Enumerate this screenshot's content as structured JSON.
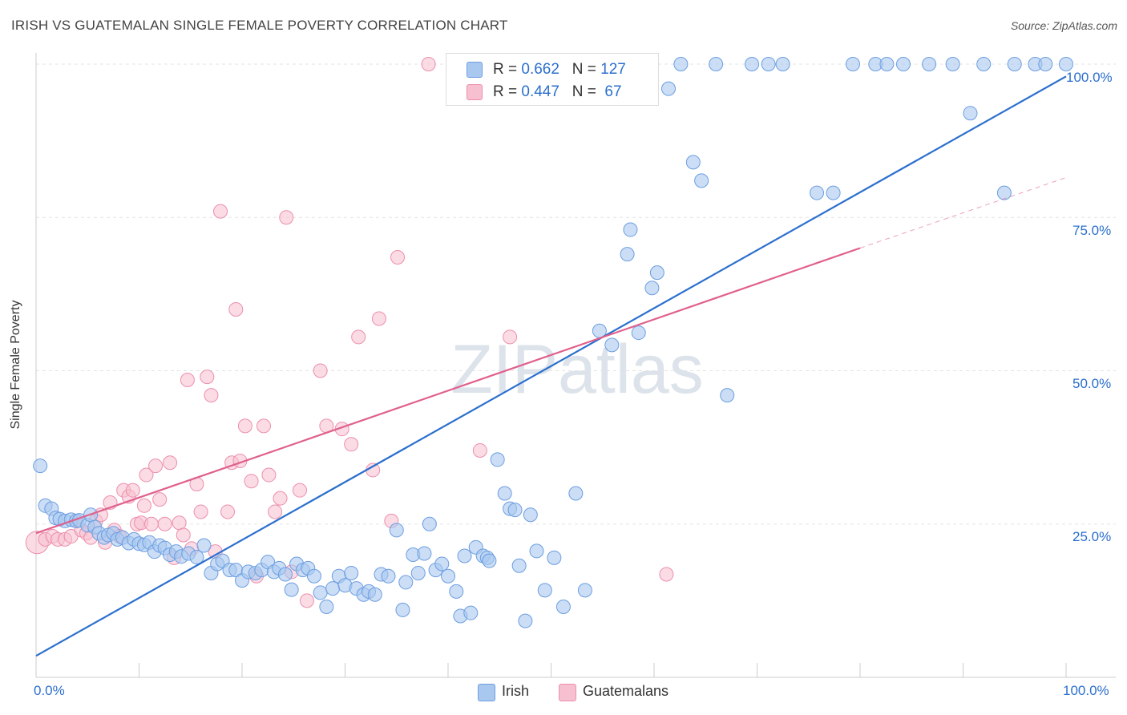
{
  "title": "IRISH VS GUATEMALAN SINGLE FEMALE POVERTY CORRELATION CHART",
  "source": "Source: ZipAtlas.com",
  "watermark": "ZIPatlas",
  "colors": {
    "irish_fill": "#a9c8f0",
    "irish_stroke": "#6d9ee0",
    "irish_line": "#2b6fce",
    "guat_fill": "#f7c0d0",
    "guat_stroke": "#ec8fab",
    "guat_line": "#e0608c",
    "axis_text": "#2b6fce"
  },
  "legend": {
    "irish": {
      "r_label": "R = ",
      "r_value": "0.662",
      "n_label": "N = ",
      "n_value": "127"
    },
    "guat": {
      "r_label": "R = ",
      "r_value": "0.447",
      "n_label": "N = ",
      "n_value": " 67"
    }
  },
  "bottom_legend": {
    "irish": "Irish",
    "guat": "Guatemalans"
  },
  "chart_data": {
    "type": "scatter",
    "title": "IRISH VS GUATEMALAN SINGLE FEMALE POVERTY CORRELATION CHART",
    "xlabel": "",
    "ylabel": "Single Female Poverty",
    "xlim": [
      0,
      100
    ],
    "ylim": [
      0,
      100
    ],
    "x_tick_labels": [
      "0.0%",
      "100.0%"
    ],
    "y_tick_labels": [
      "25.0%",
      "50.0%",
      "75.0%",
      "100.0%"
    ],
    "y_ticks": [
      25,
      50,
      75,
      100
    ],
    "grid": true,
    "legend_position": "top-center",
    "series": [
      {
        "name": "Irish",
        "r": 0.662,
        "n": 127,
        "trend": {
          "x": [
            0,
            100
          ],
          "y": [
            3.5,
            98.0
          ]
        },
        "points": [
          [
            0.4,
            34.5
          ],
          [
            0.9,
            28
          ],
          [
            1.5,
            27.5
          ],
          [
            1.9,
            26
          ],
          [
            2.3,
            25.8
          ],
          [
            2.8,
            25.5
          ],
          [
            3.4,
            25.7
          ],
          [
            3.9,
            25.5
          ],
          [
            4.2,
            25.6
          ],
          [
            5.0,
            24.8
          ],
          [
            5.3,
            26.5
          ],
          [
            5.7,
            24.5
          ],
          [
            6.1,
            23.5
          ],
          [
            6.6,
            22.8
          ],
          [
            7.0,
            23.2
          ],
          [
            7.5,
            23.5
          ],
          [
            7.9,
            22.5
          ],
          [
            8.4,
            22.8
          ],
          [
            9.0,
            21.9
          ],
          [
            9.5,
            22.5
          ],
          [
            10.0,
            21.8
          ],
          [
            10.5,
            21.6
          ],
          [
            11.0,
            22
          ],
          [
            11.5,
            20.5
          ],
          [
            12.0,
            21.5
          ],
          [
            12.5,
            21.1
          ],
          [
            13.0,
            20
          ],
          [
            13.6,
            20.5
          ],
          [
            14.1,
            19.7
          ],
          [
            14.8,
            20.2
          ],
          [
            15.6,
            19.6
          ],
          [
            16.3,
            21.5
          ],
          [
            17.0,
            17
          ],
          [
            17.6,
            18.5
          ],
          [
            18.1,
            19
          ],
          [
            18.8,
            17.5
          ],
          [
            19.4,
            17.5
          ],
          [
            20.0,
            15.8
          ],
          [
            20.6,
            17.2
          ],
          [
            21.3,
            17
          ],
          [
            21.9,
            17.5
          ],
          [
            22.5,
            18.8
          ],
          [
            23.1,
            17.2
          ],
          [
            23.6,
            17.8
          ],
          [
            24.2,
            16.8
          ],
          [
            24.8,
            14.3
          ],
          [
            25.3,
            18.5
          ],
          [
            25.9,
            17.5
          ],
          [
            26.4,
            17.8
          ],
          [
            27.0,
            16.5
          ],
          [
            27.6,
            13.8
          ],
          [
            28.2,
            11.5
          ],
          [
            28.8,
            14.5
          ],
          [
            29.4,
            16.5
          ],
          [
            30.0,
            15
          ],
          [
            30.6,
            17
          ],
          [
            31.1,
            14.5
          ],
          [
            31.8,
            13.5
          ],
          [
            32.3,
            14
          ],
          [
            32.9,
            13.5
          ],
          [
            33.5,
            16.8
          ],
          [
            34.2,
            16.5
          ],
          [
            35.0,
            24
          ],
          [
            35.6,
            11
          ],
          [
            35.9,
            15.5
          ],
          [
            36.6,
            20
          ],
          [
            37.1,
            17
          ],
          [
            37.7,
            20.2
          ],
          [
            38.2,
            25
          ],
          [
            38.8,
            17.5
          ],
          [
            39.4,
            18.5
          ],
          [
            40.0,
            16.5
          ],
          [
            40.8,
            14
          ],
          [
            41.2,
            10
          ],
          [
            41.6,
            19.8
          ],
          [
            42.2,
            10.5
          ],
          [
            42.7,
            21.2
          ],
          [
            43.4,
            19.8
          ],
          [
            43.8,
            19.5
          ],
          [
            44.0,
            19
          ],
          [
            44.8,
            35.5
          ],
          [
            45.5,
            30
          ],
          [
            46.0,
            27.5
          ],
          [
            46.5,
            27.3
          ],
          [
            46.9,
            18.2
          ],
          [
            47.5,
            9.2
          ],
          [
            48.0,
            26.5
          ],
          [
            48.6,
            20.6
          ],
          [
            49.4,
            14.2
          ],
          [
            50.3,
            19.5
          ],
          [
            51.2,
            11.5
          ],
          [
            52.4,
            30
          ],
          [
            53.3,
            14.2
          ],
          [
            54.7,
            56.5
          ],
          [
            55.9,
            54.2
          ],
          [
            57.4,
            69
          ],
          [
            57.7,
            73
          ],
          [
            58.5,
            56.2
          ],
          [
            59.8,
            63.5
          ],
          [
            60.3,
            66
          ],
          [
            61.4,
            96
          ],
          [
            62.6,
            100
          ],
          [
            63.8,
            84
          ],
          [
            64.6,
            81
          ],
          [
            66.0,
            100
          ],
          [
            67.1,
            46
          ],
          [
            69.5,
            100
          ],
          [
            71.1,
            100
          ],
          [
            72.5,
            100
          ],
          [
            75.8,
            79
          ],
          [
            77.4,
            79
          ],
          [
            79.3,
            100
          ],
          [
            81.5,
            100
          ],
          [
            82.6,
            100
          ],
          [
            84.2,
            100
          ],
          [
            86.7,
            100
          ],
          [
            89.0,
            100
          ],
          [
            90.7,
            92
          ],
          [
            92.0,
            100
          ],
          [
            95.0,
            100
          ],
          [
            100.0,
            100
          ],
          [
            97.0,
            100
          ],
          [
            98.0,
            100
          ],
          [
            94.0,
            79
          ]
        ]
      },
      {
        "name": "Guatemalans",
        "r": 0.447,
        "n": 67,
        "trend": {
          "x": [
            0,
            80
          ],
          "y": [
            23.5,
            70.0
          ]
        },
        "trend_extension": {
          "x": [
            80,
            100
          ],
          "y": [
            70.0,
            81.5
          ]
        },
        "points": [
          [
            0.1,
            22
          ],
          [
            0.9,
            22.5
          ],
          [
            1.6,
            23
          ],
          [
            2.1,
            22.5
          ],
          [
            2.8,
            22.5
          ],
          [
            3.4,
            23
          ],
          [
            3.9,
            25.5
          ],
          [
            4.4,
            24
          ],
          [
            4.9,
            23.5
          ],
          [
            5.3,
            22.8
          ],
          [
            5.8,
            25.5
          ],
          [
            6.3,
            26.5
          ],
          [
            6.7,
            22
          ],
          [
            7.2,
            28.5
          ],
          [
            7.6,
            24
          ],
          [
            8.1,
            23
          ],
          [
            8.5,
            30.5
          ],
          [
            9.0,
            29.5
          ],
          [
            9.4,
            30.5
          ],
          [
            9.8,
            25
          ],
          [
            10.2,
            25.2
          ],
          [
            10.5,
            28
          ],
          [
            10.7,
            33
          ],
          [
            11.2,
            25
          ],
          [
            11.6,
            34.5
          ],
          [
            12.0,
            29
          ],
          [
            12.5,
            25
          ],
          [
            13.0,
            35
          ],
          [
            13.4,
            19.5
          ],
          [
            13.9,
            25.2
          ],
          [
            14.3,
            23.2
          ],
          [
            14.7,
            48.5
          ],
          [
            15.1,
            21
          ],
          [
            15.6,
            31.5
          ],
          [
            16.0,
            27
          ],
          [
            16.6,
            49
          ],
          [
            17.0,
            46
          ],
          [
            17.4,
            20.5
          ],
          [
            17.9,
            76
          ],
          [
            18.6,
            27
          ],
          [
            19.0,
            35
          ],
          [
            19.4,
            60
          ],
          [
            19.8,
            35.3
          ],
          [
            20.3,
            41
          ],
          [
            20.9,
            32
          ],
          [
            21.4,
            16.5
          ],
          [
            22.1,
            41
          ],
          [
            22.6,
            33
          ],
          [
            23.2,
            27
          ],
          [
            23.7,
            29.2
          ],
          [
            24.3,
            75
          ],
          [
            24.8,
            17.2
          ],
          [
            25.6,
            30.5
          ],
          [
            26.3,
            12.5
          ],
          [
            27.6,
            50
          ],
          [
            28.2,
            41
          ],
          [
            29.7,
            40.5
          ],
          [
            30.6,
            38
          ],
          [
            31.3,
            55.5
          ],
          [
            32.7,
            33.8
          ],
          [
            33.3,
            58.5
          ],
          [
            34.5,
            25.5
          ],
          [
            35.1,
            68.5
          ],
          [
            38.1,
            100
          ],
          [
            43.1,
            37
          ],
          [
            46.0,
            55.5
          ],
          [
            61.2,
            16.8
          ]
        ]
      }
    ]
  }
}
